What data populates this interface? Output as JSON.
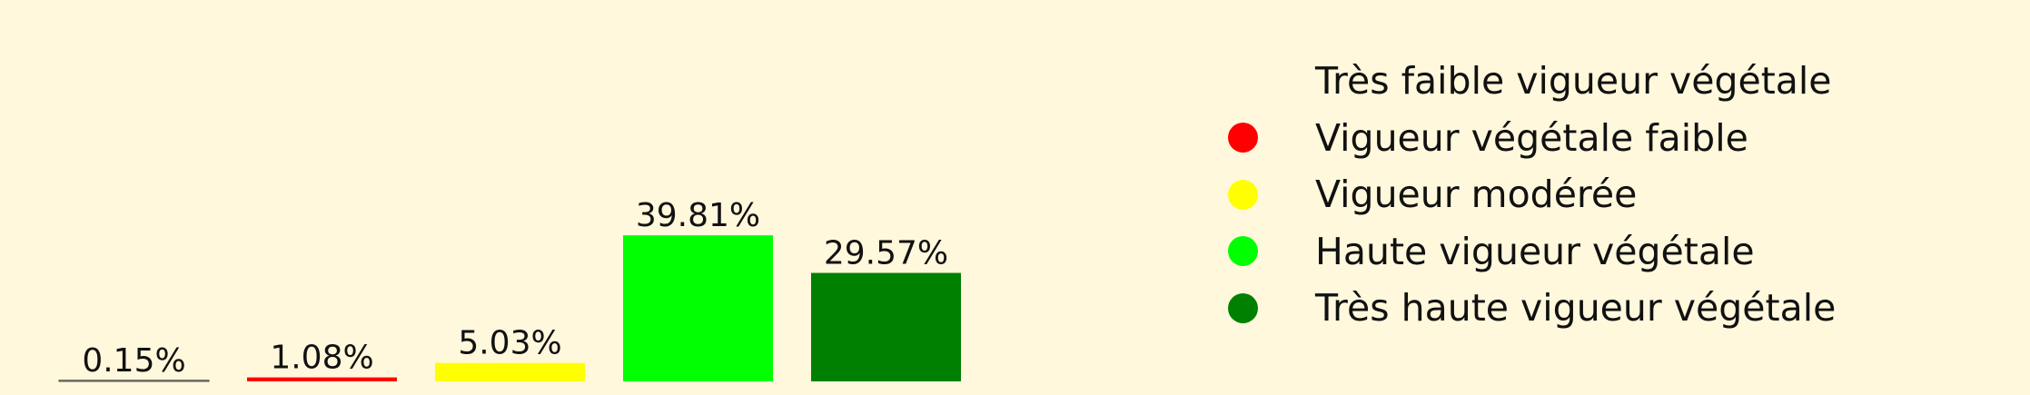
{
  "chart_data": {
    "type": "bar",
    "title": "",
    "xlabel": "",
    "ylabel": "",
    "ylim": [
      0,
      40
    ],
    "categories": [
      "Très faible vigueur végétale",
      "Vigueur végétale faible",
      "Vigueur modérée",
      "Haute vigueur végétale",
      "Très haute vigueur végétale"
    ],
    "values": [
      0.15,
      1.08,
      5.03,
      39.81,
      29.57
    ],
    "value_labels": [
      "0.15%",
      "1.08%",
      "5.03%",
      "39.81%",
      "29.57%"
    ],
    "colors": [
      "#fff8dc",
      "#ff0000",
      "#ffff00",
      "#00ff00",
      "#008000"
    ],
    "grid": false,
    "legend_position": "right"
  },
  "legend": {
    "items": [
      {
        "label": "Très faible vigueur végétale",
        "color": "#fff8dc"
      },
      {
        "label": "Vigueur végétale faible",
        "color": "#ff0000"
      },
      {
        "label": "Vigueur modérée",
        "color": "#ffff00"
      },
      {
        "label": "Haute vigueur végétale",
        "color": "#00ff00"
      },
      {
        "label": "Très haute vigueur végétale",
        "color": "#008000"
      }
    ]
  }
}
